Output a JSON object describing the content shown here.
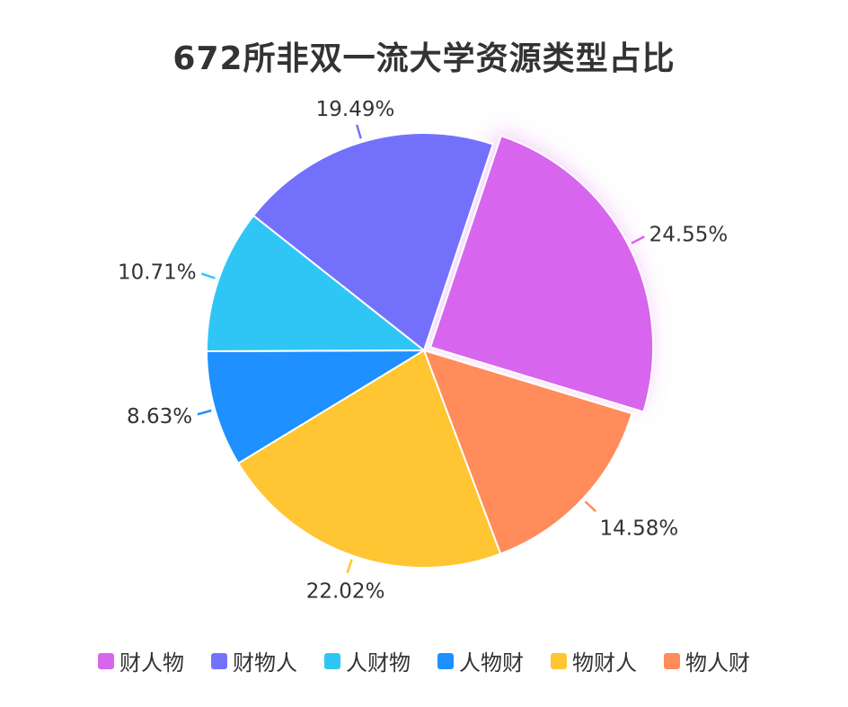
{
  "chart_data": {
    "type": "pie",
    "title": "672所非双一流大学资源类型占比",
    "slices": [
      {
        "label": "财人物",
        "value": 24.55,
        "display": "24.55%",
        "color": "#d865ee"
      },
      {
        "label": "物人财",
        "value": 14.58,
        "display": "14.58%",
        "color": "#ff8c5a"
      },
      {
        "label": "物财人",
        "value": 22.02,
        "display": "22.02%",
        "color": "#ffc532"
      },
      {
        "label": "人物财",
        "value": 8.63,
        "display": "8.63%",
        "color": "#1e90ff"
      },
      {
        "label": "人财物",
        "value": 10.71,
        "display": "10.71%",
        "color": "#2fc6f6"
      },
      {
        "label": "财物人",
        "value": 19.49,
        "display": "19.49%",
        "color": "#7371fc"
      }
    ],
    "legend": {
      "placement": "bottom",
      "order": [
        "财人物",
        "财物人",
        "人财物",
        "人物财",
        "物财人",
        "物人财"
      ]
    },
    "highlighted": "财人物"
  }
}
